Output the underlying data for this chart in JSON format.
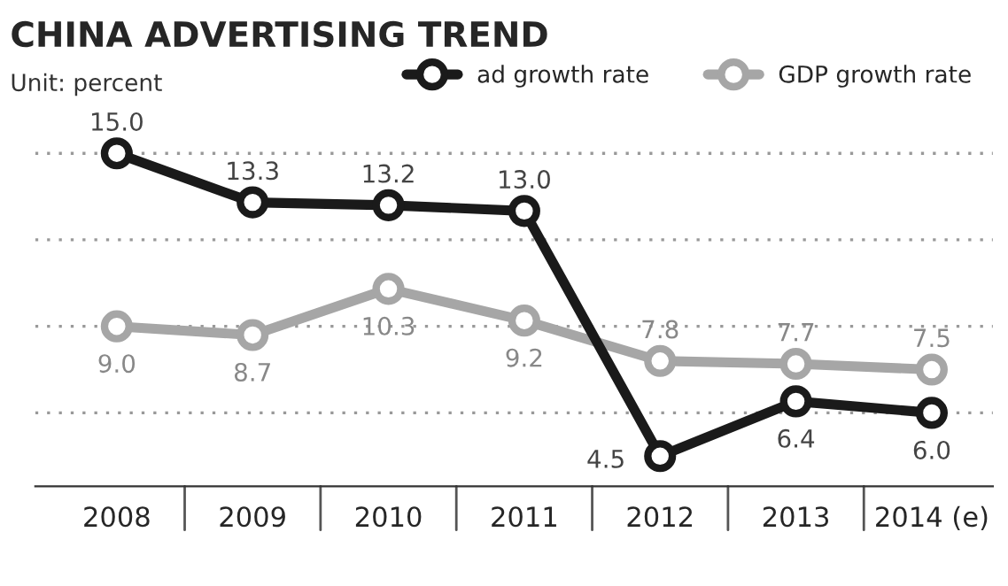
{
  "chart_data": {
    "type": "line",
    "title": "CHINA ADVERTISING TREND",
    "subtitle": "Unit: percent",
    "categories": [
      "2008",
      "2009",
      "2010",
      "2011",
      "2012",
      "2013",
      "2014 (e)"
    ],
    "series": [
      {
        "name": "ad growth rate",
        "color": "#1a1a1a",
        "values": [
          15.0,
          13.3,
          13.2,
          13.0,
          4.5,
          6.4,
          6.0
        ],
        "value_labels": [
          "15.0",
          "13.3",
          "13.2",
          "13.0",
          "4.5",
          "6.4",
          "6.0"
        ]
      },
      {
        "name": "GDP growth rate",
        "color": "#a6a6a6",
        "values": [
          9.0,
          8.7,
          10.3,
          9.2,
          7.8,
          7.7,
          7.5
        ],
        "value_labels": [
          "9.0",
          "8.7",
          "10.3",
          "9.2",
          "7.8",
          "7.7",
          "7.5"
        ]
      }
    ],
    "yticks": [
      {
        "value": 6,
        "label": null
      },
      {
        "value": 9,
        "label": null
      },
      {
        "value": 12,
        "label": null
      },
      {
        "value": 15,
        "label": null
      }
    ],
    "tick_labels": "x",
    "grid": "y",
    "legend": "top right",
    "marker": "circle",
    "line_style": "solid"
  }
}
